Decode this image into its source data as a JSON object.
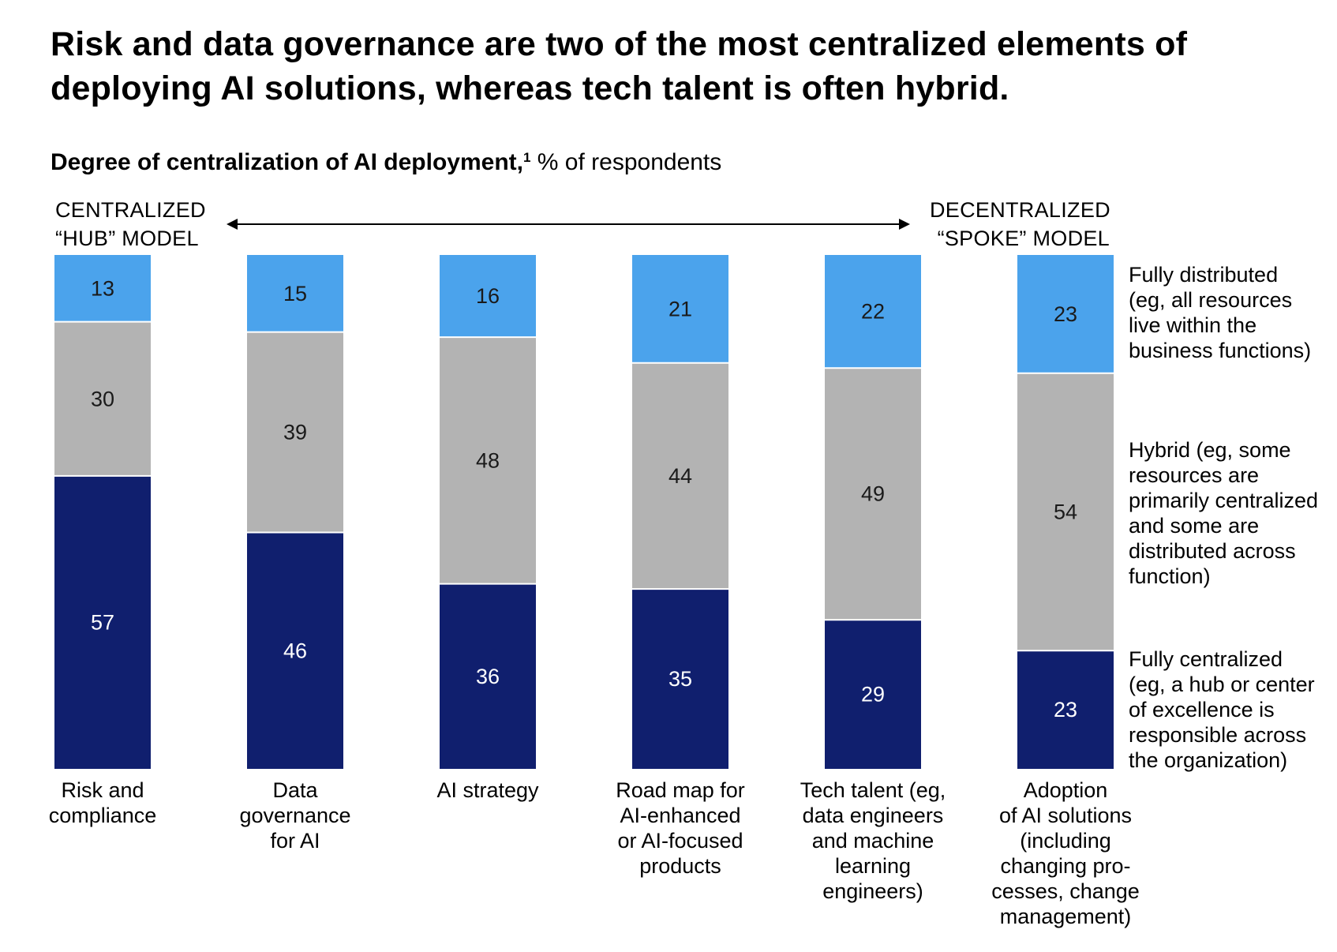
{
  "title": "Risk and data governance are two of the most centralized elements of deploying AI solutions, whereas tech talent is often hybrid.",
  "subtitle_bold": "Degree of centralization of AI deployment,",
  "subtitle_footnote": "1",
  "subtitle_rest": " % of respondents",
  "axis": {
    "left_line1": "CENTRALIZED",
    "left_line2": "“HUB” MODEL",
    "right_line1": "DECENTRALIZED",
    "right_line2": "“SPOKE” MODEL"
  },
  "colors": {
    "fully_centralized": "#101F6E",
    "hybrid": "#B3B3B3",
    "fully_distributed": "#4BA3EC",
    "separator": "#FFFFFF"
  },
  "chart_data": {
    "type": "bar",
    "stacked": true,
    "orientation": "vertical",
    "unit": "% of respondents",
    "title": "Degree of centralization of AI deployment",
    "categories": [
      "Risk and compliance",
      "Data governance for AI",
      "AI strategy",
      "Road map for AI-enhanced or AI-focused products",
      "Tech talent (eg, data engineers and machine learning engineers)",
      "Adoption of AI solutions (including changing processes, change management)"
    ],
    "series": [
      {
        "name": "Fully centralized (eg, a hub or center of excellence is responsible across the organization)",
        "key": "fully_centralized",
        "values": [
          57,
          46,
          36,
          35,
          29,
          23
        ]
      },
      {
        "name": "Hybrid (eg, some resources are primarily centralized and some are distributed across function)",
        "key": "hybrid",
        "values": [
          30,
          39,
          48,
          44,
          49,
          54
        ]
      },
      {
        "name": "Fully distributed (eg, all resources live within the business functions)",
        "key": "fully_distributed",
        "values": [
          13,
          15,
          16,
          21,
          22,
          23
        ]
      }
    ]
  },
  "category_labels": [
    [
      "Risk and",
      "compliance"
    ],
    [
      "Data",
      "governance",
      "for AI"
    ],
    [
      "AI strategy"
    ],
    [
      "Road map for",
      "AI-enhanced",
      "or AI-focused",
      "products"
    ],
    [
      "Tech talent (eg,",
      "data engineers",
      "and machine",
      "learning",
      "engineers)"
    ],
    [
      "Adoption",
      "of AI solutions",
      "(including",
      "changing pro-",
      "cesses, change",
      "management)"
    ]
  ],
  "legend": {
    "fully_distributed": [
      "Fully distributed",
      "(eg, all resources",
      "live within the",
      "business functions)"
    ],
    "hybrid": [
      "Hybrid (eg, some",
      "resources are",
      "primarily centralized",
      "and some are",
      "distributed across",
      "function)"
    ],
    "fully_centralized": [
      "Fully centralized",
      "(eg, a hub or center",
      "of excellence is",
      "responsible across",
      "the organization)"
    ]
  }
}
